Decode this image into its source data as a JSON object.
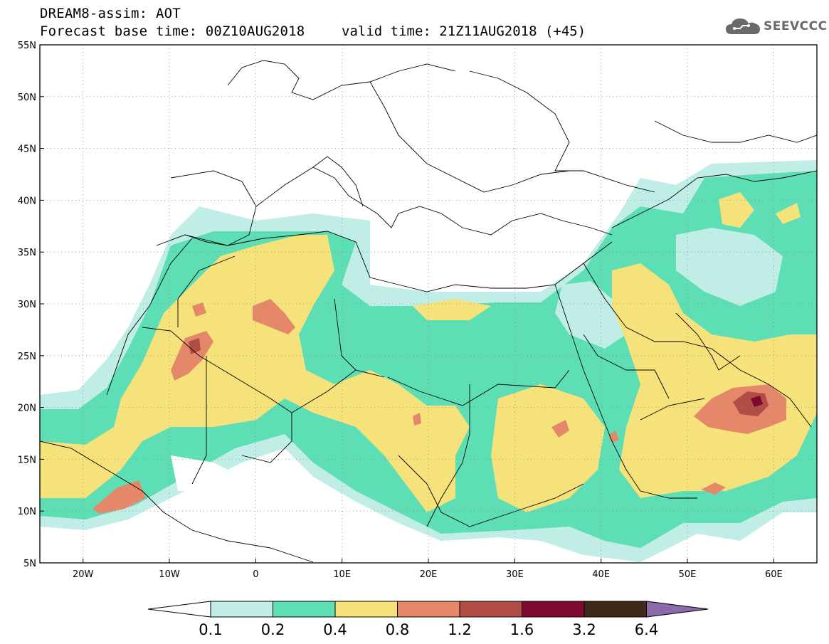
{
  "header": {
    "title_line1": "DREAM8-assim: AOT",
    "title_line2": "Forecast base time: 00Z10AUG2018",
    "valid_time": "valid time: 21Z11AUG2018 (+45)"
  },
  "logo": {
    "text": "SEEVCCC",
    "icon": "cloud-icon"
  },
  "map": {
    "lon_range": [
      -25,
      65
    ],
    "lat_range": [
      5,
      55
    ],
    "lat_ticks": [
      {
        "value": 55,
        "label": "55N"
      },
      {
        "value": 50,
        "label": "50N"
      },
      {
        "value": 45,
        "label": "45N"
      },
      {
        "value": 40,
        "label": "40N"
      },
      {
        "value": 35,
        "label": "35N"
      },
      {
        "value": 30,
        "label": "30N"
      },
      {
        "value": 25,
        "label": "25N"
      },
      {
        "value": 20,
        "label": "20N"
      },
      {
        "value": 15,
        "label": "15N"
      },
      {
        "value": 10,
        "label": "10N"
      },
      {
        "value": 5,
        "label": "5N"
      }
    ],
    "lon_ticks": [
      {
        "value": -20,
        "label": "20W"
      },
      {
        "value": -10,
        "label": "10W"
      },
      {
        "value": 0,
        "label": "0"
      },
      {
        "value": 10,
        "label": "10E"
      },
      {
        "value": 20,
        "label": "20E"
      },
      {
        "value": 30,
        "label": "30E"
      },
      {
        "value": 40,
        "label": "40E"
      },
      {
        "value": 50,
        "label": "50E"
      },
      {
        "value": 60,
        "label": "60E"
      }
    ],
    "grid": true
  },
  "colorbar": {
    "colors": [
      "#ffffff",
      "#c0ede6",
      "#5ddeb5",
      "#f5e27a",
      "#e5886a",
      "#b24d45",
      "#7e0a2f",
      "#3f2a1a",
      "#8a6aa8"
    ],
    "labels": [
      "0.1",
      "0.2",
      "0.4",
      "0.8",
      "1.2",
      "1.6",
      "3.2",
      "6.4"
    ]
  }
}
